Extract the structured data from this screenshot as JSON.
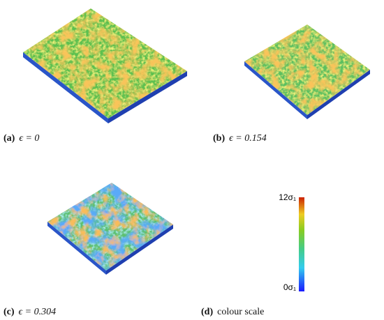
{
  "panels": [
    {
      "label": "(a)",
      "caption": "ϵ = 0"
    },
    {
      "label": "(b)",
      "caption": "ϵ = 0.154"
    },
    {
      "label": "(c)",
      "caption": "ϵ = 0.304"
    },
    {
      "label": "(d)",
      "caption": "colour scale"
    }
  ],
  "colour_scale": {
    "max_label": "12σ₁",
    "min_label": "0σ₁"
  }
}
